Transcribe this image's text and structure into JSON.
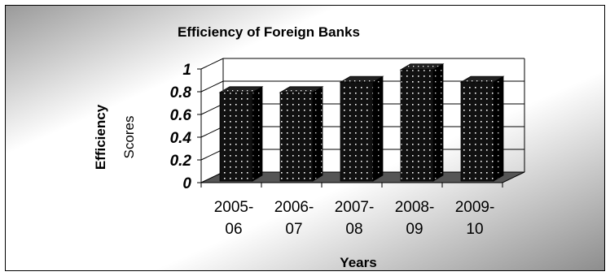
{
  "chart_data": {
    "type": "bar",
    "title": "Efficiency of Foreign Banks",
    "xlabel": "Years",
    "ylabel": [
      "Efficiency",
      "Scores"
    ],
    "categories": [
      [
        "2005-",
        "06"
      ],
      [
        "2006-",
        "07"
      ],
      [
        "2007-",
        "08"
      ],
      [
        "2008-",
        "09"
      ],
      [
        "2009-",
        "10"
      ]
    ],
    "values": [
      0.78,
      0.78,
      0.87,
      0.98,
      0.87
    ],
    "yticks": [
      "0",
      "0.2",
      "0.4",
      "0.6",
      "0.8",
      "1"
    ],
    "ylim": [
      0,
      1
    ],
    "grid": true,
    "legend": "none",
    "style": "3d-column",
    "colors": {
      "bar": "#111111",
      "dots": "#ffffff",
      "floor": "#555555",
      "grid": "#000000",
      "background_light": "#ffffff",
      "background_dark": "#8e8e8e"
    }
  }
}
